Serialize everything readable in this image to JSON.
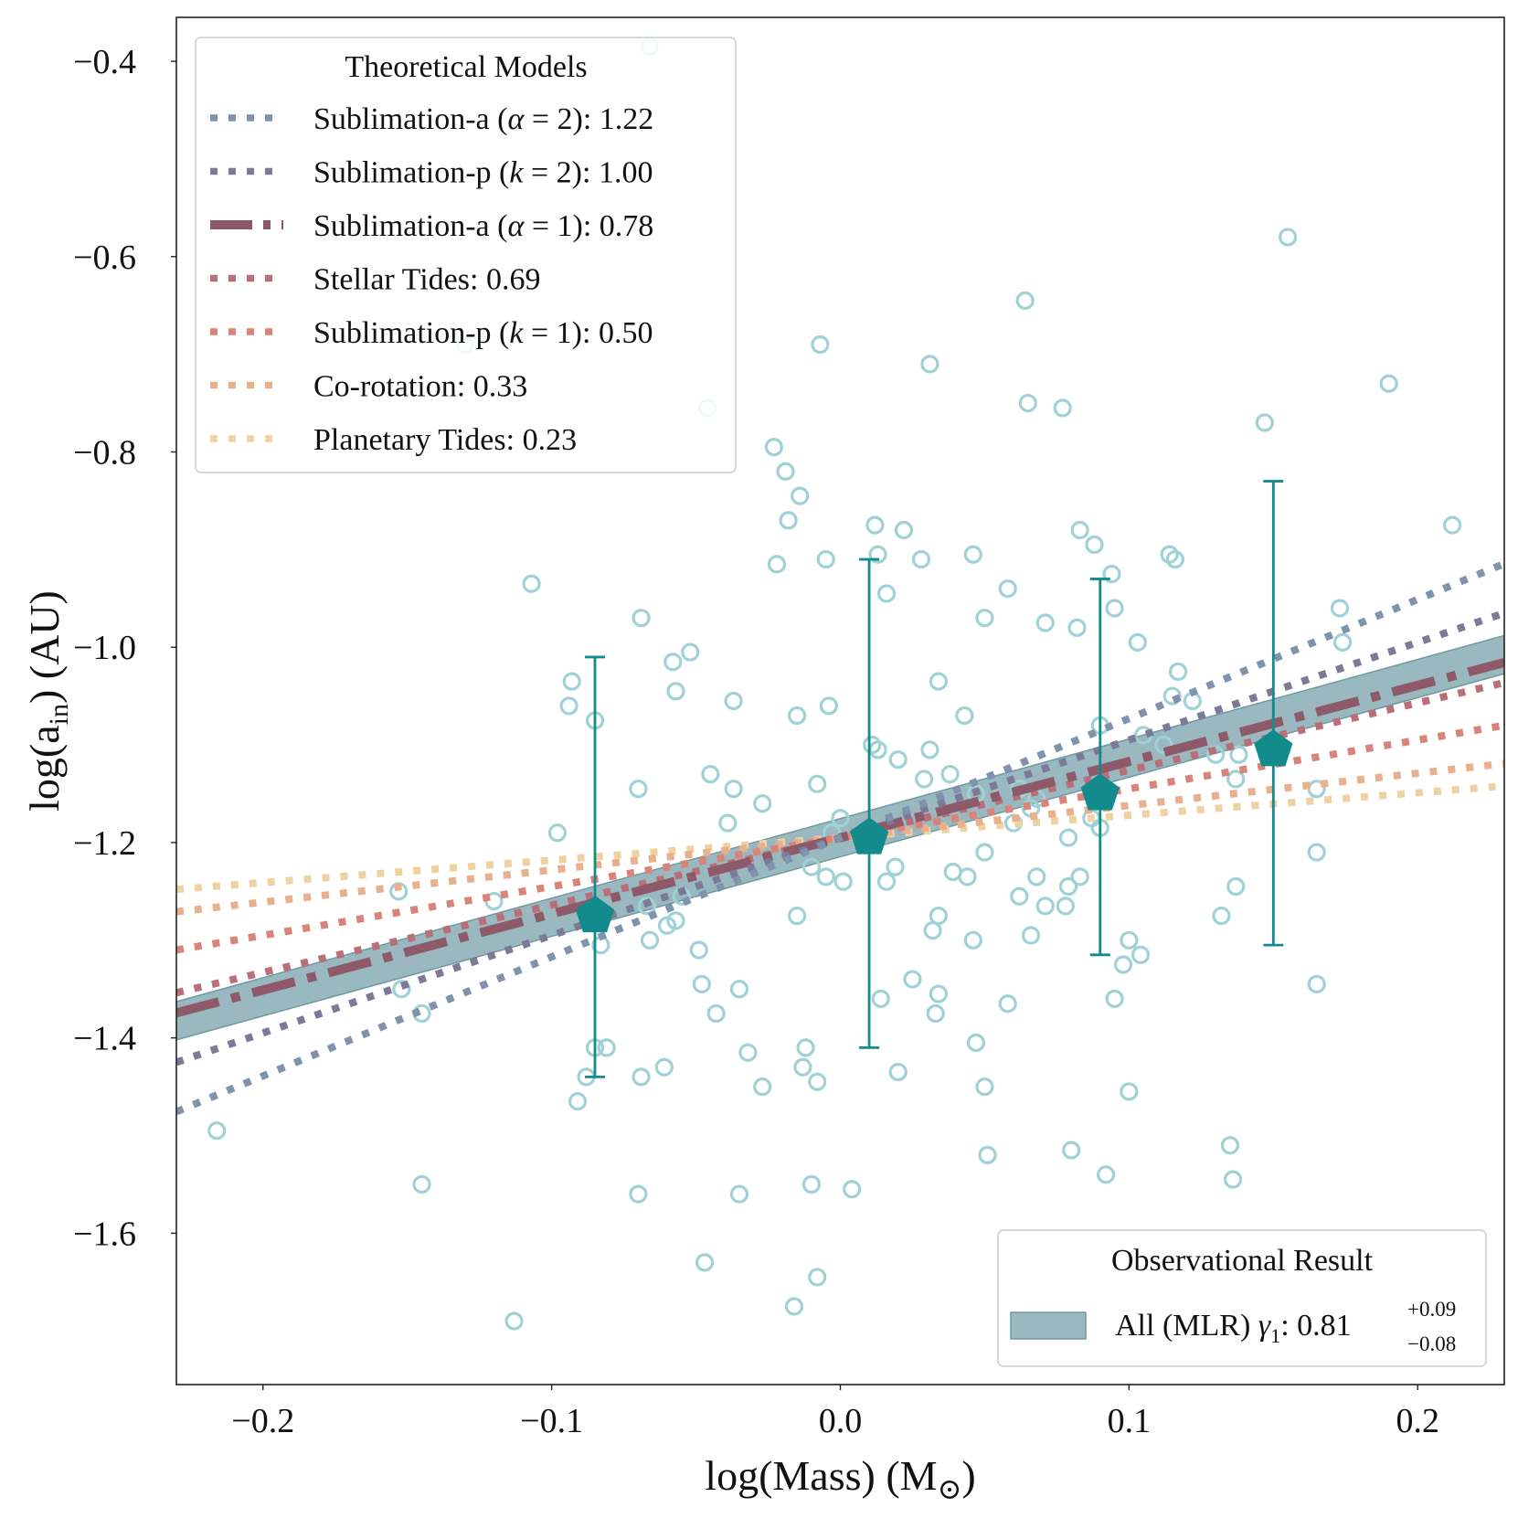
{
  "chart_data": {
    "type": "scatter",
    "xlabel": {
      "main": "log(Mass) (M",
      "symbol": "⊙",
      "close": ")"
    },
    "ylabel": {
      "main": "log(a",
      "sub": "in",
      "close": ") (AU)"
    },
    "xlim": [
      -0.23,
      0.23
    ],
    "ylim": [
      -1.755,
      -0.355
    ],
    "xticks": [
      -0.2,
      -0.1,
      0.0,
      0.1,
      0.2
    ],
    "xtick_labels": [
      "−0.2",
      "−0.1",
      "0.0",
      "0.1",
      "0.2"
    ],
    "yticks": [
      -0.4,
      -0.6,
      -0.8,
      -1.0,
      -1.2,
      -1.4,
      -1.6
    ],
    "ytick_labels": [
      "−0.4",
      "−0.6",
      "−0.8",
      "−1.0",
      "−1.2",
      "−1.4",
      "−1.6"
    ],
    "grid": false,
    "pivot": {
      "x": 0.0,
      "y": -1.195
    },
    "models": [
      {
        "name": "Sublimation-a (α = 2): 1.22",
        "label_prefix": "Sublimation-a (",
        "label_var": "α",
        "label_eq": " = 2): ",
        "value": "1.22",
        "slope": 1.22,
        "color": "#7f93ad",
        "style": "dotted"
      },
      {
        "name": "Sublimation-p (k = 2): 1.00",
        "label_prefix": "Sublimation-p (",
        "label_var": "k",
        "label_eq": " = 2): ",
        "value": "1.00",
        "slope": 1.0,
        "color": "#7c7a96",
        "style": "dotted"
      },
      {
        "name": "Sublimation-a (α = 1): 0.78",
        "label_prefix": "Sublimation-a (",
        "label_var": "α",
        "label_eq": " = 1): ",
        "value": "0.78",
        "slope": 0.78,
        "color": "#8e5a6a",
        "style": "dashdot"
      },
      {
        "name": "Stellar Tides: 0.69",
        "label_prefix": "Stellar Tides: ",
        "label_var": "",
        "label_eq": "",
        "value": "0.69",
        "slope": 0.69,
        "color": "#b96f78",
        "style": "dotted"
      },
      {
        "name": "Sublimation-p (k = 1): 0.50",
        "label_prefix": "Sublimation-p (",
        "label_var": "k",
        "label_eq": " = 1): ",
        "value": "0.50",
        "slope": 0.5,
        "color": "#d9847b",
        "style": "dotted"
      },
      {
        "name": "Co-rotation: 0.33",
        "label_prefix": "Co-rotation: ",
        "label_var": "",
        "label_eq": "",
        "value": "0.33",
        "slope": 0.33,
        "color": "#e8b08c",
        "style": "dotted"
      },
      {
        "name": "Planetary Tides: 0.23",
        "label_prefix": "Planetary Tides: ",
        "label_var": "",
        "label_eq": "",
        "value": "0.23",
        "slope": 0.23,
        "color": "#efd2a2",
        "style": "dotted"
      }
    ],
    "legend_theory": {
      "title": "Theoretical Models",
      "placement": "upper-left"
    },
    "observational": {
      "legend_title": "Observational Result",
      "label_prefix": "All (MLR) ",
      "label_var": "γ",
      "label_var_sub": "1",
      "label_value": ": 0.81",
      "plus": "+0.09",
      "minus": "−0.08",
      "slope": 0.81,
      "slope_upper": 0.9,
      "slope_lower": 0.73,
      "color": "#6e9aa4",
      "placement": "lower-right"
    },
    "binned": [
      {
        "x": -0.085,
        "y": -1.275,
        "yerr_low": -1.44,
        "yerr_high": -1.01
      },
      {
        "x": 0.01,
        "y": -1.195,
        "yerr_low": -1.41,
        "yerr_high": -0.91
      },
      {
        "x": 0.09,
        "y": -1.15,
        "yerr_low": -1.315,
        "yerr_high": -0.93
      },
      {
        "x": 0.15,
        "y": -1.105,
        "yerr_low": -1.305,
        "yerr_high": -0.83
      }
    ],
    "binned_color": "#138a8c",
    "scatter_color": "#9fd2d4",
    "scatter_points": [
      [
        -0.066,
        -0.385
      ],
      [
        -0.13,
        -0.69
      ],
      [
        -0.046,
        -0.755
      ],
      [
        -0.007,
        -0.69
      ],
      [
        0.031,
        -0.71
      ],
      [
        0.064,
        -0.645
      ],
      [
        0.065,
        -0.75
      ],
      [
        0.077,
        -0.755
      ],
      [
        0.147,
        -0.77
      ],
      [
        0.155,
        -0.58
      ],
      [
        0.19,
        -0.73
      ],
      [
        0.212,
        -0.875
      ],
      [
        0.173,
        -0.96
      ],
      [
        0.174,
        -0.995
      ],
      [
        -0.023,
        -0.795
      ],
      [
        -0.019,
        -0.82
      ],
      [
        -0.014,
        -0.845
      ],
      [
        -0.018,
        -0.87
      ],
      [
        -0.022,
        -0.915
      ],
      [
        -0.005,
        -0.91
      ],
      [
        0.012,
        -0.875
      ],
      [
        0.022,
        -0.88
      ],
      [
        0.028,
        -0.91
      ],
      [
        0.013,
        -0.905
      ],
      [
        0.016,
        -0.945
      ],
      [
        0.046,
        -0.905
      ],
      [
        0.058,
        -0.94
      ],
      [
        0.05,
        -0.97
      ],
      [
        0.071,
        -0.975
      ],
      [
        0.083,
        -0.88
      ],
      [
        0.088,
        -0.895
      ],
      [
        0.094,
        -0.925
      ],
      [
        0.095,
        -0.96
      ],
      [
        0.082,
        -0.98
      ],
      [
        0.103,
        -0.995
      ],
      [
        0.114,
        -0.905
      ],
      [
        0.116,
        -0.91
      ],
      [
        0.117,
        -1.025
      ],
      [
        0.115,
        -1.05
      ],
      [
        0.122,
        -1.055
      ],
      [
        0.09,
        -1.08
      ],
      [
        0.105,
        -1.09
      ],
      [
        0.112,
        -1.1
      ],
      [
        0.13,
        -1.11
      ],
      [
        0.138,
        -1.11
      ],
      [
        0.137,
        -1.135
      ],
      [
        0.165,
        -1.145
      ],
      [
        0.165,
        -1.21
      ],
      [
        0.137,
        -1.245
      ],
      [
        0.132,
        -1.275
      ],
      [
        0.165,
        -1.345
      ],
      [
        0.135,
        -1.51
      ],
      [
        0.136,
        -1.545
      ],
      [
        -0.107,
        -0.935
      ],
      [
        -0.093,
        -1.035
      ],
      [
        -0.094,
        -1.06
      ],
      [
        -0.085,
        -1.075
      ],
      [
        -0.069,
        -0.97
      ],
      [
        -0.058,
        -1.015
      ],
      [
        -0.052,
        -1.005
      ],
      [
        -0.057,
        -1.045
      ],
      [
        -0.037,
        -1.055
      ],
      [
        -0.015,
        -1.07
      ],
      [
        -0.004,
        -1.06
      ],
      [
        -0.045,
        -1.13
      ],
      [
        -0.037,
        -1.145
      ],
      [
        -0.027,
        -1.16
      ],
      [
        -0.039,
        -1.18
      ],
      [
        -0.07,
        -1.145
      ],
      [
        -0.098,
        -1.19
      ],
      [
        -0.008,
        -1.14
      ],
      [
        0.0,
        -1.175
      ],
      [
        -0.003,
        -1.19
      ],
      [
        0.011,
        -1.1
      ],
      [
        0.013,
        -1.105
      ],
      [
        0.02,
        -1.115
      ],
      [
        0.031,
        -1.105
      ],
      [
        0.034,
        -1.035
      ],
      [
        0.043,
        -1.07
      ],
      [
        0.029,
        -1.135
      ],
      [
        0.038,
        -1.13
      ],
      [
        0.047,
        -1.15
      ],
      [
        0.062,
        -1.145
      ],
      [
        0.066,
        -1.165
      ],
      [
        0.068,
        -1.155
      ],
      [
        0.06,
        -1.18
      ],
      [
        0.087,
        -1.175
      ],
      [
        0.079,
        -1.195
      ],
      [
        0.09,
        -1.185
      ],
      [
        0.05,
        -1.21
      ],
      [
        -0.01,
        -1.225
      ],
      [
        -0.005,
        -1.235
      ],
      [
        0.001,
        -1.24
      ],
      [
        0.016,
        -1.24
      ],
      [
        0.019,
        -1.225
      ],
      [
        0.039,
        -1.23
      ],
      [
        0.044,
        -1.235
      ],
      [
        0.068,
        -1.235
      ],
      [
        0.079,
        -1.245
      ],
      [
        0.083,
        -1.235
      ],
      [
        0.062,
        -1.255
      ],
      [
        0.071,
        -1.265
      ],
      [
        0.078,
        -1.265
      ],
      [
        0.034,
        -1.275
      ],
      [
        0.032,
        -1.29
      ],
      [
        0.046,
        -1.3
      ],
      [
        0.066,
        -1.295
      ],
      [
        0.1,
        -1.3
      ],
      [
        0.104,
        -1.315
      ],
      [
        0.098,
        -1.325
      ],
      [
        0.095,
        -1.36
      ],
      [
        0.014,
        -1.36
      ],
      [
        0.025,
        -1.34
      ],
      [
        0.034,
        -1.355
      ],
      [
        0.058,
        -1.365
      ],
      [
        0.033,
        -1.375
      ],
      [
        0.047,
        -1.405
      ],
      [
        0.02,
        -1.435
      ],
      [
        0.05,
        -1.45
      ],
      [
        0.1,
        -1.455
      ],
      [
        -0.055,
        -1.255
      ],
      [
        -0.067,
        -1.265
      ],
      [
        -0.06,
        -1.285
      ],
      [
        -0.057,
        -1.28
      ],
      [
        -0.066,
        -1.3
      ],
      [
        -0.083,
        -1.305
      ],
      [
        -0.049,
        -1.31
      ],
      [
        -0.048,
        -1.345
      ],
      [
        -0.035,
        -1.35
      ],
      [
        -0.043,
        -1.375
      ],
      [
        -0.015,
        -1.275
      ],
      [
        -0.12,
        -1.26
      ],
      [
        -0.153,
        -1.25
      ],
      [
        -0.152,
        -1.35
      ],
      [
        -0.145,
        -1.375
      ],
      [
        -0.085,
        -1.41
      ],
      [
        -0.081,
        -1.41
      ],
      [
        -0.088,
        -1.44
      ],
      [
        -0.091,
        -1.465
      ],
      [
        -0.061,
        -1.43
      ],
      [
        -0.069,
        -1.44
      ],
      [
        -0.032,
        -1.415
      ],
      [
        -0.012,
        -1.41
      ],
      [
        -0.013,
        -1.43
      ],
      [
        -0.008,
        -1.445
      ],
      [
        -0.027,
        -1.45
      ],
      [
        -0.216,
        -1.495
      ],
      [
        -0.145,
        -1.55
      ],
      [
        -0.07,
        -1.56
      ],
      [
        -0.035,
        -1.56
      ],
      [
        -0.01,
        -1.55
      ],
      [
        0.004,
        -1.555
      ],
      [
        0.051,
        -1.52
      ],
      [
        0.08,
        -1.515
      ],
      [
        0.092,
        -1.54
      ],
      [
        -0.047,
        -1.63
      ],
      [
        -0.008,
        -1.645
      ],
      [
        -0.016,
        -1.675
      ],
      [
        -0.113,
        -1.69
      ]
    ]
  }
}
